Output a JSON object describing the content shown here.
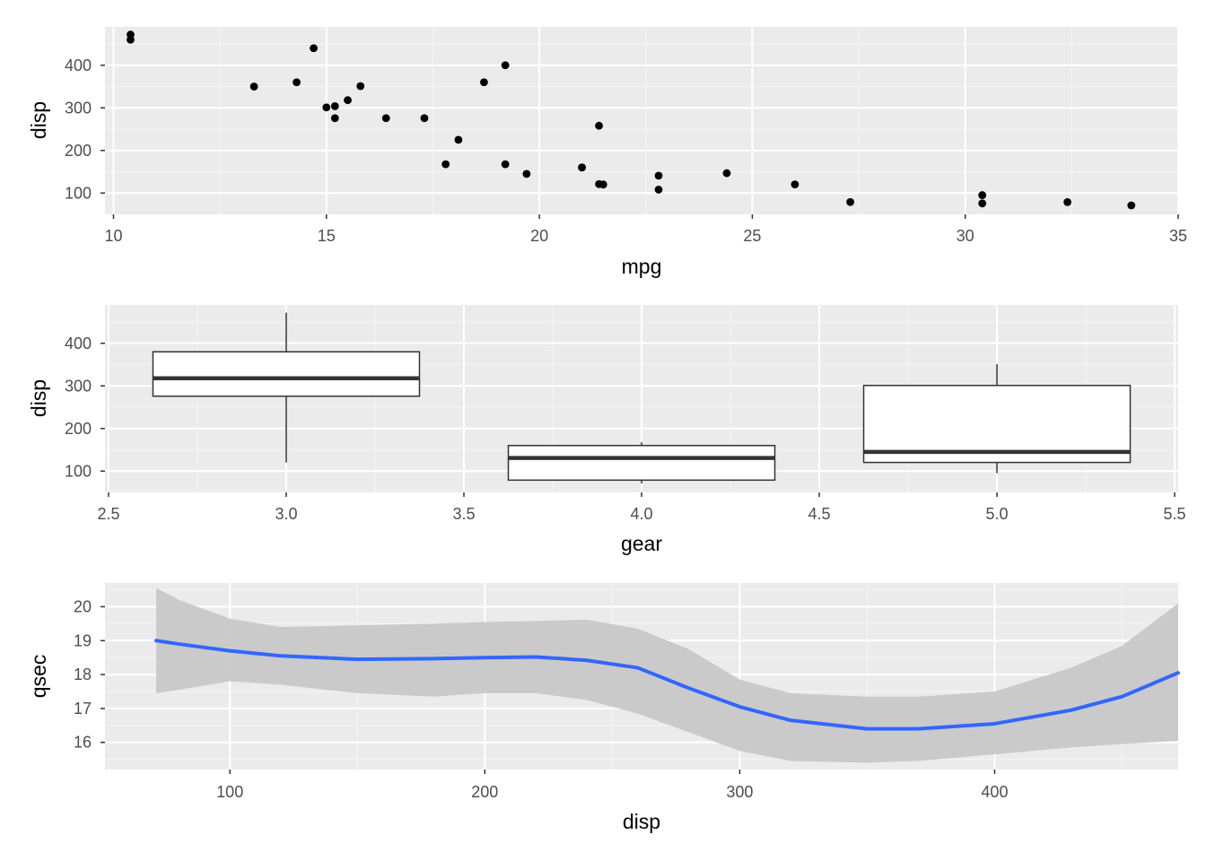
{
  "colors": {
    "panel_bg": "#ebebeb",
    "grid_major": "#ffffff",
    "grid_minor": "#f5f5f5",
    "point": "#000000",
    "box_fill": "#ffffff",
    "box_line": "#333333",
    "smooth_line": "#3366ff",
    "ribbon": "#c8c8c8",
    "tick_text": "#4d4d4d",
    "axis_title": "#000000"
  },
  "chart_data": [
    {
      "type": "scatter",
      "xlabel": "mpg",
      "ylabel": "disp",
      "xlim": [
        9.8,
        35
      ],
      "ylim": [
        50,
        490
      ],
      "x_ticks": [
        10,
        15,
        20,
        25,
        30,
        35
      ],
      "y_ticks": [
        100,
        200,
        300,
        400
      ],
      "x_tick_labels": [
        "10",
        "15",
        "20",
        "25",
        "30",
        "35"
      ],
      "y_tick_labels": [
        "100",
        "200",
        "300",
        "400"
      ],
      "points": [
        [
          21.0,
          160
        ],
        [
          21.0,
          160
        ],
        [
          22.8,
          108
        ],
        [
          21.4,
          258
        ],
        [
          18.7,
          360
        ],
        [
          18.1,
          225
        ],
        [
          14.3,
          360
        ],
        [
          24.4,
          146.7
        ],
        [
          22.8,
          140.8
        ],
        [
          19.2,
          167.6
        ],
        [
          17.8,
          167.6
        ],
        [
          16.4,
          275.8
        ],
        [
          17.3,
          275.8
        ],
        [
          15.2,
          275.8
        ],
        [
          10.4,
          472
        ],
        [
          10.4,
          460
        ],
        [
          14.7,
          440
        ],
        [
          32.4,
          78.7
        ],
        [
          30.4,
          75.7
        ],
        [
          33.9,
          71.1
        ],
        [
          21.5,
          120.1
        ],
        [
          15.5,
          318
        ],
        [
          15.2,
          304
        ],
        [
          13.3,
          350
        ],
        [
          19.2,
          400
        ],
        [
          27.3,
          79
        ],
        [
          26.0,
          120.3
        ],
        [
          30.4,
          95.1
        ],
        [
          15.8,
          351
        ],
        [
          19.7,
          145
        ],
        [
          15.0,
          301
        ],
        [
          21.4,
          121
        ]
      ]
    },
    {
      "type": "boxplot",
      "xlabel": "gear",
      "ylabel": "disp",
      "xlim": [
        2.49,
        5.51
      ],
      "ylim": [
        50,
        490
      ],
      "x_ticks": [
        2.5,
        3.0,
        3.5,
        4.0,
        4.5,
        5.0,
        5.5
      ],
      "y_ticks": [
        100,
        200,
        300,
        400
      ],
      "x_tick_labels": [
        "2.5",
        "3.0",
        "3.5",
        "4.0",
        "4.5",
        "5.0",
        "5.5"
      ],
      "y_tick_labels": [
        "100",
        "200",
        "300",
        "400"
      ],
      "boxes": [
        {
          "x": 3,
          "width": 0.75,
          "lower": 120.1,
          "q1": 275.8,
          "median": 318,
          "q3": 380,
          "upper": 472
        },
        {
          "x": 4,
          "width": 0.75,
          "lower": 71.1,
          "q1": 78.8,
          "median": 130.9,
          "q3": 160,
          "upper": 167.6
        },
        {
          "x": 5,
          "width": 0.75,
          "lower": 95.1,
          "q1": 120.3,
          "median": 145,
          "q3": 301,
          "upper": 351
        }
      ]
    },
    {
      "type": "line",
      "smooth": "loess",
      "xlabel": "disp",
      "ylabel": "qsec",
      "xlim": [
        51,
        472
      ],
      "ylim": [
        15.2,
        20.7
      ],
      "x_ticks": [
        100,
        200,
        300,
        400
      ],
      "y_ticks": [
        16,
        17,
        18,
        19,
        20
      ],
      "x_tick_labels": [
        "100",
        "200",
        "300",
        "400"
      ],
      "y_tick_labels": [
        "16",
        "17",
        "18",
        "19",
        "20"
      ],
      "x": [
        71.1,
        80,
        100,
        120,
        150,
        180,
        200,
        220,
        240,
        260,
        280,
        300,
        320,
        350,
        370,
        400,
        430,
        450,
        472
      ],
      "y": [
        19.0,
        18.9,
        18.7,
        18.55,
        18.45,
        18.47,
        18.5,
        18.52,
        18.42,
        18.2,
        17.6,
        17.05,
        16.65,
        16.4,
        16.4,
        16.55,
        16.95,
        17.35,
        18.05
      ],
      "ymin": [
        17.45,
        17.55,
        17.8,
        17.7,
        17.45,
        17.35,
        17.45,
        17.45,
        17.25,
        16.85,
        16.3,
        15.75,
        15.45,
        15.4,
        15.45,
        15.65,
        15.85,
        15.95,
        16.05
      ],
      "ymax": [
        20.55,
        20.2,
        19.65,
        19.4,
        19.45,
        19.5,
        19.55,
        19.58,
        19.62,
        19.35,
        18.75,
        17.85,
        17.45,
        17.35,
        17.35,
        17.5,
        18.2,
        18.85,
        20.1
      ]
    }
  ]
}
